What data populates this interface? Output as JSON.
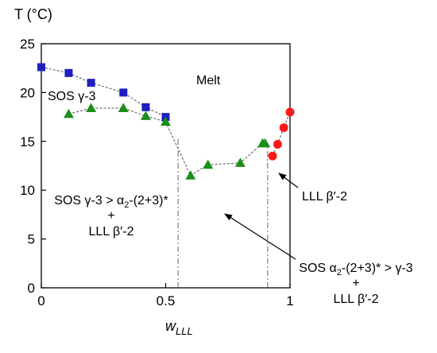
{
  "chart_data": {
    "type": "scatter",
    "ylabel": "T (°C)",
    "xlabel_main": "w",
    "xlabel_sub": "LLL",
    "xlim": [
      0,
      1
    ],
    "ylim": [
      0,
      25
    ],
    "xticks": [
      0,
      0.5,
      1
    ],
    "xtick_labels": [
      "0",
      "0.5",
      "1"
    ],
    "yticks": [
      0,
      5,
      10,
      15,
      20,
      25
    ],
    "ytick_labels": [
      "0",
      "5",
      "10",
      "15",
      "20",
      "25"
    ],
    "grid": false,
    "series": [
      {
        "marker": "square",
        "color": "#1f1fbf",
        "connector": "dashed",
        "x": [
          0,
          0.11,
          0.2,
          0.33,
          0.42,
          0.5
        ],
        "y": [
          22.6,
          22.0,
          21.0,
          20.0,
          18.5,
          17.5
        ]
      },
      {
        "marker": "triangle",
        "color": "#1a8f1a",
        "connector": "dashed",
        "x": [
          0.11,
          0.2,
          0.33,
          0.42,
          0.5,
          0.6,
          0.67,
          0.8,
          0.89,
          0.9
        ],
        "y": [
          17.8,
          18.4,
          18.4,
          17.6,
          17.0,
          11.5,
          12.6,
          12.8,
          14.8,
          14.8
        ]
      },
      {
        "marker": "circle",
        "color": "#ff1a1a",
        "connector": "dashed",
        "x": [
          0.93,
          0.95,
          0.975,
          1.0
        ],
        "y": [
          13.5,
          14.7,
          16.4,
          18.0
        ]
      }
    ],
    "boundaries": [
      {
        "style": "dash-dot",
        "x": 0.55,
        "y_from": 0,
        "y_to": 15.4
      },
      {
        "style": "dash-dot",
        "x": 0.91,
        "y_from": 0,
        "y_to": 14.8
      }
    ],
    "annotations": {
      "melt": "Melt",
      "sos_g3": "SOS γ-3",
      "left_region_line1_a": "SOS γ-3 > α",
      "left_region_line1_sub": "2",
      "left_region_line1_b": "-(2+3)*",
      "left_region_line2": "+",
      "left_region_line3": "LLL β′-2",
      "lll_beta": "LLL β′-2",
      "right_region_line1_a": "SOS α",
      "right_region_line1_sub": "2",
      "right_region_line1_b": "-(2+3)* > γ-3",
      "right_region_line2": "+",
      "right_region_line3": "LLL β′-2"
    }
  }
}
